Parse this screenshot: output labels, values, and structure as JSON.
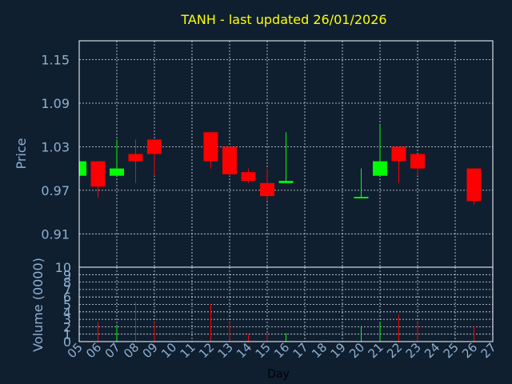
{
  "chart_data": [
    {
      "type": "candlestick",
      "title": "TANH - last updated 26/01/2026",
      "ylabel": "Price",
      "xlabel": "",
      "ylim": [
        0.864,
        1.176
      ],
      "yticks": [
        "1.15",
        "1.09",
        "1.03",
        "0.97",
        "0.91"
      ],
      "ytick_values": [
        1.15,
        1.09,
        1.03,
        0.97,
        0.91
      ],
      "grid": true,
      "up_color": "#00ff00",
      "down_color": "#ff0000",
      "candles": [
        {
          "day": 5,
          "open": 0.99,
          "close": 1.01,
          "high": 1.01,
          "low": 0.99
        },
        {
          "day": 6,
          "open": 1.01,
          "close": 0.975,
          "high": 1.01,
          "low": 0.96
        },
        {
          "day": 7,
          "open": 0.99,
          "close": 1.0,
          "high": 1.04,
          "low": 0.99
        },
        {
          "day": 8,
          "open": 1.02,
          "close": 1.01,
          "high": 1.04,
          "low": 0.98
        },
        {
          "day": 9,
          "open": 1.04,
          "close": 1.02,
          "high": 1.04,
          "low": 0.99
        },
        {
          "day": 12,
          "open": 1.05,
          "close": 1.01,
          "high": 1.05,
          "low": 1.0
        },
        {
          "day": 13,
          "open": 1.03,
          "close": 0.992,
          "high": 1.03,
          "low": 0.99
        },
        {
          "day": 14,
          "open": 0.995,
          "close": 0.983,
          "high": 1.0,
          "low": 0.98
        },
        {
          "day": 15,
          "open": 0.98,
          "close": 0.962,
          "high": 1.0,
          "low": 0.955
        },
        {
          "day": 16,
          "open": 0.98,
          "close": 0.983,
          "high": 1.05,
          "low": 0.98
        },
        {
          "day": 20,
          "open": 0.96,
          "close": 0.961,
          "high": 1.0,
          "low": 0.96
        },
        {
          "day": 21,
          "open": 0.99,
          "close": 1.01,
          "high": 1.06,
          "low": 0.99
        },
        {
          "day": 22,
          "open": 1.03,
          "close": 1.01,
          "high": 1.03,
          "low": 0.98
        },
        {
          "day": 23,
          "open": 1.02,
          "close": 1.0,
          "high": 1.02,
          "low": 0.99
        },
        {
          "day": 26,
          "open": 1.0,
          "close": 0.955,
          "high": 1.0,
          "low": 0.95
        }
      ]
    },
    {
      "type": "bar",
      "ylabel": "Volume (0000)",
      "xlabel": "Day",
      "ylim": [
        0,
        10
      ],
      "yticks": [
        "10",
        "9",
        "8",
        "7",
        "6",
        "5",
        "4",
        "3",
        "2",
        "1",
        "0"
      ],
      "grid": true,
      "categories": [
        "05",
        "06",
        "07",
        "08",
        "09",
        "10",
        "11",
        "12",
        "13",
        "14",
        "15",
        "16",
        "17",
        "18",
        "19",
        "20",
        "21",
        "22",
        "23",
        "24",
        "25",
        "26",
        "27"
      ],
      "volumes": [
        {
          "day": 5,
          "value": 0.3,
          "color": "#00ff00"
        },
        {
          "day": 6,
          "value": 2.6,
          "color": "#ff0000"
        },
        {
          "day": 7,
          "value": 2.1,
          "color": "#00ff00"
        },
        {
          "day": 8,
          "value": 5.3,
          "color": "#ff0000"
        },
        {
          "day": 9,
          "value": 2.6,
          "color": "#ff0000"
        },
        {
          "day": 12,
          "value": 5.1,
          "color": "#ff0000"
        },
        {
          "day": 13,
          "value": 2.6,
          "color": "#ff0000"
        },
        {
          "day": 14,
          "value": 1.0,
          "color": "#ff0000"
        },
        {
          "day": 15,
          "value": 1.1,
          "color": "#ff0000"
        },
        {
          "day": 16,
          "value": 1.1,
          "color": "#00ff00"
        },
        {
          "day": 20,
          "value": 2.1,
          "color": "#00ff00"
        },
        {
          "day": 21,
          "value": 2.6,
          "color": "#00ff00"
        },
        {
          "day": 22,
          "value": 3.6,
          "color": "#ff0000"
        },
        {
          "day": 23,
          "value": 2.6,
          "color": "#ff0000"
        },
        {
          "day": 26,
          "value": 2.1,
          "color": "#ff0000"
        }
      ]
    }
  ]
}
